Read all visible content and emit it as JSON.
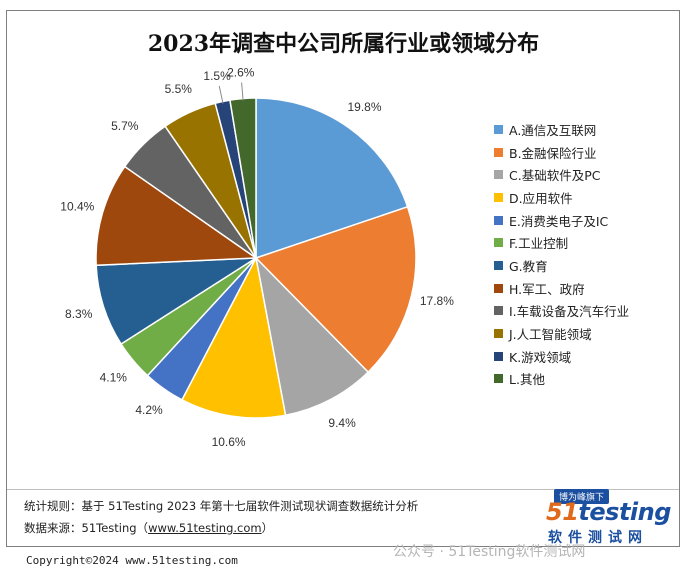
{
  "chart_data": {
    "type": "pie",
    "title": "2023年调查中公司所属行业或领域分布",
    "categories": [
      "A.通信及互联网",
      "B.金融保险行业",
      "C.基础软件及PC",
      "D.应用软件",
      "E.消费类电子及IC",
      "F.工业控制",
      "G.教育",
      "H.军工、政府",
      "I.车载设备及汽车行业",
      "J.人工智能领域",
      "K.游戏领域",
      "L.其他"
    ],
    "values": [
      19.8,
      17.8,
      9.4,
      10.6,
      4.2,
      4.1,
      8.3,
      10.4,
      5.7,
      5.5,
      1.5,
      2.6
    ],
    "labels": [
      "19.8%",
      "17.8%",
      "9.4%",
      "10.6%",
      "4.2%",
      "4.1%",
      "8.3%",
      "10.4%",
      "5.7%",
      "5.5%",
      "1.5%",
      "2.6%"
    ],
    "colors": [
      "#5b9bd5",
      "#ed7d31",
      "#a5a5a5",
      "#ffc000",
      "#4472c4",
      "#70ad47",
      "#255e91",
      "#9e480e",
      "#636363",
      "#997300",
      "#264478",
      "#43682b"
    ],
    "start_angle_deg": 0,
    "direction": "clockwise",
    "legend_position": "right"
  },
  "footer": {
    "rule": "统计规则：基于 51Testing 2023 年第十七届软件测试现状调查数据统计分析",
    "source_label": "数据来源：51Testing（",
    "source_url": "www.51testing.com",
    "source_close": "）",
    "copyright": "Copyright©2024 www.51testing.com"
  },
  "logo": {
    "badge": "博为峰旗下",
    "num": "51",
    "word": "testing",
    "sub": "软件测试网"
  },
  "watermark": "公众号 · 51Testing软件测试网"
}
